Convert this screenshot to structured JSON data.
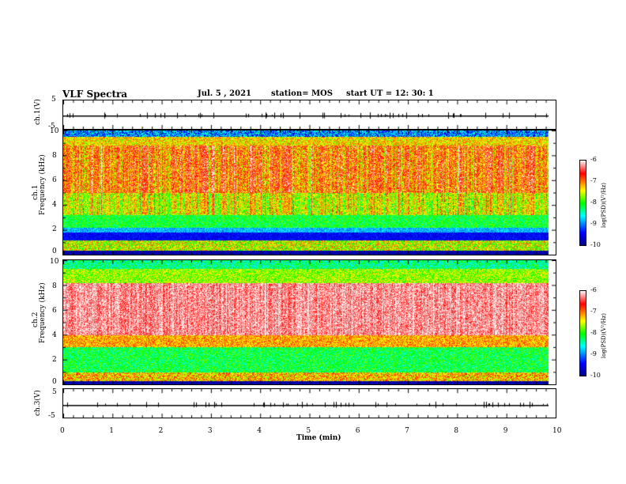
{
  "header": {
    "title": "VLF Spectra",
    "date": "Jul.  5  , 2021",
    "station": "station= MOS",
    "start": "start  UT =    12: 30: 1"
  },
  "chart_data": [
    {
      "type": "line",
      "name": "ch1-waveform",
      "ylabel": "ch.1(V)",
      "ylim": [
        -5,
        5
      ],
      "yticks": [
        "5",
        "-5"
      ],
      "baseline": -0.3
    },
    {
      "type": "heatmap",
      "name": "ch1-spectrogram",
      "ylabel_top": "ch.1",
      "ylabel": "Frequency (kHz)",
      "ylim": [
        0,
        10
      ],
      "yticks": [
        "10",
        "8",
        "6",
        "4",
        "2",
        "0"
      ],
      "colorbar": {
        "label": "log(PSD)(V²/Hz)",
        "range": [
          -10,
          -6
        ],
        "ticks": [
          "-6",
          "-7",
          "-8",
          "-9",
          "-10"
        ]
      }
    },
    {
      "type": "heatmap",
      "name": "ch2-spectrogram",
      "ylabel_top": "ch.2",
      "ylabel": "Frequency (kHz)",
      "ylim": [
        0,
        10
      ],
      "yticks": [
        "10",
        "8",
        "6",
        "4",
        "2",
        "0"
      ],
      "colorbar": {
        "label": "log(PSD)(V²/Hz)",
        "range": [
          -10,
          -6
        ],
        "ticks": [
          "-6",
          "-7",
          "-8",
          "-9",
          "-10"
        ]
      }
    },
    {
      "type": "line",
      "name": "ch3-waveform",
      "ylabel": "ch.3(V)",
      "ylim": [
        -5,
        5
      ],
      "yticks": [
        "5",
        "-5"
      ],
      "baseline": -0.5
    }
  ],
  "xaxis": {
    "label": "Time  (min)",
    "xlim": [
      0,
      10
    ],
    "ticks": [
      "0",
      "1",
      "2",
      "3",
      "4",
      "5",
      "6",
      "7",
      "8",
      "9",
      "10"
    ],
    "data_end": 9.85
  }
}
